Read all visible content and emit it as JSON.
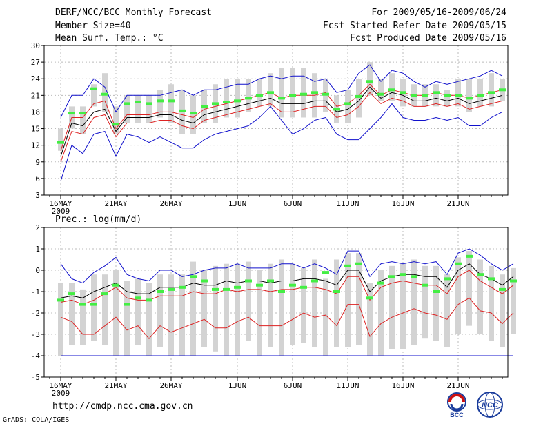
{
  "header": {
    "title": "DERF/NCC/BCC Monthly Forecast",
    "members": "Member Size=40",
    "variable1": "Mean Surf. Temp.: °C",
    "period": "For 2009/05/16-2009/06/24",
    "refer_date": "Fcst Started Refer Date 2009/05/15",
    "produced_date": "Fcst Produced Date 2009/05/16"
  },
  "footer": {
    "url": "http://cmdp.ncc.cma.gov.cn",
    "credit": "GrADS: COLA/IGES",
    "logo1_text": "BCC",
    "logo2_text": "NCC"
  },
  "colors": {
    "grid": "#bbbbbb",
    "bar": "#d3d3d3",
    "green": "#44ee44",
    "red": "#dd2222",
    "blue": "#1111cc",
    "black": "#000000"
  },
  "chart_data": [
    {
      "type": "line",
      "title": "Mean Surf. Temp.: °C",
      "x_tick_labels": [
        "16MAY",
        "21MAY",
        "26MAY",
        "1JUN",
        "6JUN",
        "11JUN",
        "16JUN",
        "21JUN"
      ],
      "x_tick_days": [
        1,
        6,
        11,
        17,
        22,
        27,
        32,
        37
      ],
      "year_label": "2009",
      "ylim": [
        3,
        30
      ],
      "yticks": [
        3,
        6,
        9,
        12,
        15,
        18,
        21,
        24,
        27,
        30
      ],
      "days": 40,
      "series": [
        {
          "name": "max",
          "color": "blue",
          "values": [
            5.5,
            12,
            10.5,
            14,
            14.5,
            10,
            14,
            13.5,
            12.5,
            13.5,
            12.5,
            11.5,
            11.5,
            13,
            14,
            14.5,
            15,
            15.5,
            17,
            19,
            16.5,
            14,
            15,
            16.5,
            17,
            14,
            13,
            13,
            15,
            17,
            19.5,
            17,
            16.5,
            16.5,
            17,
            16.5,
            17,
            15.5,
            15.5,
            17,
            18
          ]
        },
        {
          "name": "upper_blue",
          "color": "blue",
          "values": [
            17,
            21,
            21,
            24,
            22.5,
            18,
            21,
            21,
            21,
            21,
            21.5,
            22,
            21,
            22,
            22,
            22.5,
            23,
            23,
            24,
            24.5,
            24,
            24.5,
            24.5,
            23.5,
            24,
            21.5,
            22,
            25,
            26.5,
            23.5,
            25.5,
            25,
            23.5,
            22.5,
            23.5,
            23,
            23.5,
            24,
            24.5,
            25.5,
            24.5
          ]
        },
        {
          "name": "upper_red",
          "color": "red",
          "values": [
            11,
            17,
            17,
            19.5,
            20,
            15,
            17.5,
            17.5,
            17.5,
            18,
            18,
            17.5,
            17,
            18.5,
            19,
            19.5,
            20,
            20.5,
            21,
            21.5,
            20.5,
            21,
            21,
            21,
            21.5,
            19,
            19.5,
            21,
            23,
            21,
            22,
            21.5,
            21,
            21,
            21.5,
            21,
            21,
            20.5,
            21,
            21.5,
            22
          ]
        },
        {
          "name": "median",
          "color": "black",
          "values": [
            10,
            16,
            15.5,
            18,
            18.5,
            14.5,
            17,
            17,
            17,
            17.5,
            17.5,
            16.5,
            16,
            17.5,
            18,
            18.5,
            19,
            19.5,
            20,
            20.5,
            19.5,
            19.5,
            19.5,
            20,
            20,
            18,
            18.5,
            20,
            22.5,
            20.5,
            21.5,
            21,
            20,
            20,
            20.5,
            20,
            20.5,
            19.5,
            20,
            20.5,
            21
          ]
        },
        {
          "name": "lower_red",
          "color": "red",
          "values": [
            9,
            14.5,
            14,
            17,
            17.5,
            13.5,
            16,
            16,
            16,
            16.5,
            16.5,
            15.5,
            15,
            16.5,
            17,
            17.5,
            18,
            18.5,
            19,
            19.5,
            18,
            18,
            18.5,
            19,
            19,
            17,
            17.5,
            19,
            21.5,
            19.5,
            20.5,
            20,
            19,
            19,
            19.5,
            19,
            19.5,
            18.5,
            19,
            19.5,
            20
          ]
        }
      ],
      "bars_low": [
        11,
        15,
        14,
        19,
        18,
        14,
        16,
        16,
        16,
        17,
        16,
        14,
        14,
        16,
        16,
        17,
        17,
        18,
        19,
        19,
        17,
        17,
        17,
        17,
        18,
        16,
        16,
        17,
        21,
        20,
        20,
        19,
        19,
        19,
        19,
        19,
        19,
        18,
        19,
        19,
        20
      ],
      "bars_high": [
        15,
        19,
        19,
        23,
        25,
        19,
        21,
        21,
        21,
        22,
        23,
        22,
        21,
        22,
        23,
        24,
        24,
        24,
        24,
        25,
        26,
        26,
        26,
        25,
        24,
        21,
        22,
        24,
        27,
        24,
        25,
        24,
        23,
        23,
        23,
        22,
        24,
        24,
        24,
        25,
        24
      ],
      "green_marks": [
        12.5,
        17.8,
        17.8,
        22.2,
        21.2,
        15.8,
        19.5,
        19.8,
        19.5,
        20,
        20,
        18.2,
        17.8,
        19,
        19.5,
        19.8,
        20,
        20.5,
        21,
        21.5,
        20.5,
        21,
        21.2,
        21.5,
        21.2,
        18.5,
        19.5,
        20.8,
        23.5,
        21.2,
        22,
        21.5,
        21,
        21,
        21.5,
        21,
        21,
        20.5,
        21,
        21.5,
        22
      ]
    },
    {
      "type": "line",
      "title": "Prec.: log(mm/d)",
      "x_tick_labels": [
        "16MAY",
        "21MAY",
        "26MAY",
        "1JUN",
        "6JUN",
        "11JUN",
        "16JUN",
        "21JUN"
      ],
      "x_tick_days": [
        1,
        6,
        11,
        17,
        22,
        27,
        32,
        37
      ],
      "year_label": "2009",
      "ylim": [
        -5,
        2
      ],
      "yticks": [
        -5,
        -4,
        -3,
        -2,
        -1,
        0,
        1,
        2
      ],
      "days": 40,
      "baseline": -4,
      "series": [
        {
          "name": "upper_blue",
          "color": "blue",
          "values": [
            0.3,
            -0.4,
            -0.6,
            -0.1,
            0.2,
            0.6,
            -0.2,
            -0.4,
            -0.5,
            0,
            0,
            -0.3,
            -0.2,
            0,
            0.1,
            0.1,
            0.3,
            0.1,
            0.1,
            0.1,
            0.3,
            0.3,
            0.1,
            0.3,
            0.1,
            -0.2,
            0.9,
            0.9,
            -0.3,
            0.3,
            0.4,
            0.3,
            0.4,
            0.3,
            0.4,
            -0.2,
            0.8,
            1,
            0.7,
            0.3,
            0,
            0.3
          ]
        },
        {
          "name": "median",
          "color": "black",
          "values": [
            -1.3,
            -1.2,
            -1.3,
            -1.0,
            -0.8,
            -0.6,
            -1,
            -1.1,
            -1.1,
            -0.8,
            -0.8,
            -0.8,
            -0.6,
            -0.7,
            -0.7,
            -0.5,
            -0.6,
            -0.5,
            -0.5,
            -0.6,
            -0.5,
            -0.5,
            -0.4,
            -0.4,
            -0.5,
            -0.7,
            0,
            0,
            -1,
            -0.5,
            -0.3,
            -0.2,
            -0.2,
            -0.3,
            -0.3,
            -0.8,
            0,
            0.3,
            -0.2,
            -0.4,
            -0.7,
            -0.3
          ]
        },
        {
          "name": "upper_red",
          "color": "red",
          "values": [
            -1.5,
            -1.4,
            -1.6,
            -1.4,
            -1.1,
            -0.8,
            -1.3,
            -1.4,
            -1.4,
            -1.2,
            -1.2,
            -1.2,
            -1,
            -1.1,
            -1.1,
            -0.9,
            -1,
            -0.9,
            -0.9,
            -1,
            -0.9,
            -0.9,
            -0.8,
            -0.8,
            -0.9,
            -1.1,
            -0.3,
            -0.3,
            -1.4,
            -0.8,
            -0.6,
            -0.5,
            -0.6,
            -0.7,
            -0.7,
            -1.1,
            -0.3,
            0,
            -0.5,
            -0.8,
            -1.1,
            -0.7
          ]
        },
        {
          "name": "lower_red",
          "color": "red",
          "values": [
            -2.2,
            -2.4,
            -3,
            -3,
            -2.6,
            -2.2,
            -2.8,
            -2.6,
            -3.2,
            -2.6,
            -2.9,
            -2.7,
            -2.5,
            -2.3,
            -2.7,
            -2.7,
            -2.4,
            -2.2,
            -2.6,
            -2.6,
            -2.6,
            -2.3,
            -2,
            -2.2,
            -2.1,
            -2.6,
            -1.6,
            -1.6,
            -3.1,
            -2.5,
            -2.2,
            -2,
            -1.8,
            -2,
            -2.1,
            -2.3,
            -1.6,
            -1.3,
            -1.9,
            -2,
            -2.5,
            -2
          ]
        }
      ],
      "bars_low": [
        -4,
        -3.5,
        -3.5,
        -3.3,
        -3.5,
        -4,
        -4,
        -3.5,
        -4,
        -3.6,
        -4,
        -4,
        -4,
        -3.6,
        -3.8,
        -4,
        -4,
        -3.3,
        -4,
        -3.6,
        -4,
        -3.5,
        -3.4,
        -3.6,
        -4,
        -3.6,
        -3.6,
        -3.5,
        -4,
        -4,
        -3.7,
        -3.7,
        -3.5,
        -3.2,
        -3.3,
        -3.6,
        -3,
        -2.6,
        -3,
        -3.3,
        -3.6,
        -3
      ],
      "bars_high": [
        -0.6,
        -0.6,
        -0.9,
        -0.2,
        -0.2,
        0,
        -0.5,
        -0.4,
        -0.6,
        -0.2,
        -0.2,
        -0.2,
        0.4,
        0,
        0.2,
        0.3,
        0.3,
        0.4,
        0,
        0.3,
        0.5,
        0.3,
        0.1,
        0.5,
        -0.4,
        0.5,
        0.8,
        0.8,
        -0.6,
        0,
        0.2,
        0.3,
        0.5,
        0.2,
        0.2,
        -0.2,
        0.6,
        0.9,
        0.5,
        0.2,
        -0.2,
        0.1
      ],
      "green_marks": [
        -1.4,
        -1.1,
        -1.6,
        -1.6,
        -1.1,
        -0.7,
        -1.6,
        -1.3,
        -1.4,
        -1.0,
        -0.9,
        -0.8,
        -0.3,
        -0.5,
        -0.9,
        -0.9,
        -0.8,
        -0.5,
        -0.7,
        -0.5,
        -1.0,
        -0.7,
        -0.8,
        -0.5,
        -0.1,
        -1.0,
        0.2,
        0.3,
        -1.3,
        -0.6,
        -0.3,
        -0.2,
        -0.3,
        -0.7,
        -1.0,
        -0.4,
        0.3,
        0.65,
        -0.2,
        -0.4,
        -0.9,
        -0.5
      ]
    }
  ]
}
